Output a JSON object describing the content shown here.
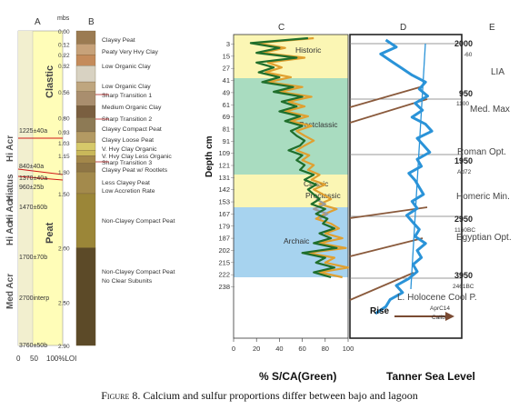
{
  "caption": {
    "label": "Figure 8.",
    "text": " Calcium and sulfur proportions differ between bajo and lagoon"
  },
  "chart_data": [
    {
      "panel": "A",
      "type": "bar",
      "title": "A",
      "ylabel": "mbs",
      "xlabel": "",
      "xtick_labels": [
        "0",
        "50",
        "100%LOI"
      ],
      "ylim": [
        0,
        2.9
      ],
      "depth_ticks": [
        "0.00",
        "0.12",
        "0.22",
        "0.32",
        "0.56",
        "0.80",
        "0.93",
        "1.03",
        "1.15",
        "1.30",
        "1.50",
        "2.00",
        "2.50",
        "2.90"
      ],
      "zones": [
        "Clastic",
        "Peat"
      ],
      "periods": [
        "Hi Acr",
        "Hiatus",
        "Hi Acr",
        "Hi Acr",
        "Med Acr"
      ],
      "dates": [
        "1225±40a",
        "840±40a",
        "1370±40a",
        "960±25b",
        "1470±60b",
        "1700±70b",
        "2700interp",
        "3760±50b"
      ],
      "colors": {
        "loi_bar": "#fffdb8",
        "red_line": "#d01818"
      }
    },
    {
      "panel": "B",
      "type": "table",
      "title": "B",
      "layers": [
        {
          "label": "Clayey Peat",
          "color": "#9b7b52"
        },
        {
          "label": "Peaty Very Hvy Clay",
          "color": "#c7a27a"
        },
        {
          "label": "Low Organic Clay",
          "color": "#c48b5b"
        },
        {
          "label": "Low Organic Clay",
          "color": "#d8d2c2"
        },
        {
          "label": "Sharp Transition 1",
          "color": "#bfa67f"
        },
        {
          "label": "Medium Organic Clay",
          "color": "#a98e6e"
        },
        {
          "label": "Sharp Transition 2",
          "color": "#7a5f40"
        },
        {
          "label": "Clayey Compact Peat",
          "color": "#8d7a55"
        },
        {
          "label": "Clayey Loose Peat",
          "color": "#b39a63"
        },
        {
          "label": "V. Hvy Clay Organic",
          "color": "#d6c96a"
        },
        {
          "label": "V. Hvy Clay Less Organic",
          "color": "#c9b85a"
        },
        {
          "label": "Sharp Transition 3",
          "color": "#a3874a"
        },
        {
          "label": "Clayey Peat w/ Rootlets",
          "color": "#8e7545"
        },
        {
          "label": "Less Clayey Peat",
          "color": "#a38a4c"
        },
        {
          "label": "Low Accretion Rate",
          "color": "#a38a4c"
        },
        {
          "label": "Non-Clayey Compact Peat",
          "color": "#9b8638"
        },
        {
          "label": "Non-Clayey Compact Peat",
          "color": "#5c4a28"
        },
        {
          "label": "No Clear Subunits",
          "color": "#5c4a28"
        }
      ]
    },
    {
      "panel": "C",
      "type": "line",
      "title": "C",
      "xlabel": "% S/CA(Green)",
      "ylabel": "Depth cm",
      "xlim": [
        0,
        100
      ],
      "xticks": [
        0,
        20,
        40,
        60,
        80,
        100
      ],
      "depth_labels": [
        "3",
        "15",
        "27",
        "41",
        "49",
        "61",
        "69",
        "81",
        "91",
        "109",
        "121",
        "131",
        "142",
        "153",
        "167",
        "179",
        "187",
        "202",
        "215",
        "222",
        "238"
      ],
      "periods": [
        {
          "name": "Historic",
          "color": "#fbf6b4"
        },
        {
          "name": "Postclassic",
          "color": "#a9dcc0"
        },
        {
          "name": "Classic",
          "color": "#fbf6b4"
        },
        {
          "name": "Preclassic",
          "color": "#fbf6b4"
        },
        {
          "name": "Archaic",
          "color": "#a7d3ef"
        }
      ],
      "series": [
        {
          "color": "#1f6e2b",
          "values": [
            65,
            15,
            40,
            20,
            55,
            20,
            35,
            22,
            40,
            25,
            52,
            35,
            60,
            42,
            55,
            40,
            58,
            45,
            60,
            50,
            55,
            62,
            58,
            48,
            60,
            55,
            62,
            58,
            70,
            62,
            72,
            65,
            70,
            75,
            68,
            80,
            72,
            82,
            78,
            88,
            75,
            85,
            70,
            90,
            60,
            80,
            72,
            88,
            70,
            85
          ]
        },
        {
          "color": "#e0a030",
          "values": [
            70,
            20,
            45,
            25,
            62,
            30,
            42,
            28,
            50,
            30,
            60,
            40,
            68,
            48,
            62,
            45,
            65,
            50,
            68,
            55,
            62,
            70,
            62,
            55,
            66,
            60,
            70,
            65,
            75,
            68,
            80,
            70,
            78,
            85,
            75,
            90,
            80,
            72,
            85,
            92,
            80,
            95,
            75,
            98,
            65,
            88,
            80,
            100,
            75,
            95
          ]
        },
        {
          "color": "#9a9a9a",
          "values": [
            null,
            null,
            null,
            null,
            null,
            null,
            null,
            null,
            null,
            null,
            null,
            null,
            null,
            null,
            null,
            null,
            null,
            null,
            null,
            null,
            null,
            null,
            null,
            null,
            null,
            null,
            null,
            null,
            null,
            null,
            null,
            null,
            null,
            72,
            80,
            70,
            82,
            75,
            null,
            null,
            null,
            null,
            null,
            null,
            null,
            null,
            null,
            null,
            null,
            null
          ]
        }
      ]
    },
    {
      "panel": "D",
      "type": "line",
      "title": "D",
      "xlabel": "Tanner Sea Level",
      "annotations": [
        "Rise"
      ],
      "colors": {
        "curve": "#2a93d8",
        "trend": "#2a93d8",
        "arrow": "#7a4a32"
      },
      "series": [
        {
          "name": "",
          "values": [
            30,
            40,
            25,
            35,
            45,
            55,
            68,
            62,
            70,
            58,
            65,
            55,
            68,
            74,
            60,
            66,
            72,
            60,
            64,
            52,
            58,
            62,
            66,
            55,
            60,
            50,
            56,
            62,
            58,
            68,
            60,
            64,
            56,
            60,
            52,
            40,
            46,
            34,
            30,
            20
          ]
        }
      ]
    },
    {
      "panel": "E",
      "type": "table",
      "title": "E",
      "dates": [
        "2000",
        "-60",
        "950",
        "1100",
        "1950",
        "Ad72",
        "2950",
        "1160BC",
        "3950",
        "2461BC",
        "AprC14",
        "Calib"
      ],
      "events": [
        "LIA",
        "Med. Max",
        "Roman Opt.",
        "Homeric Min.",
        "Egyptian Opt.",
        "L. Holocene Cool P."
      ]
    }
  ]
}
